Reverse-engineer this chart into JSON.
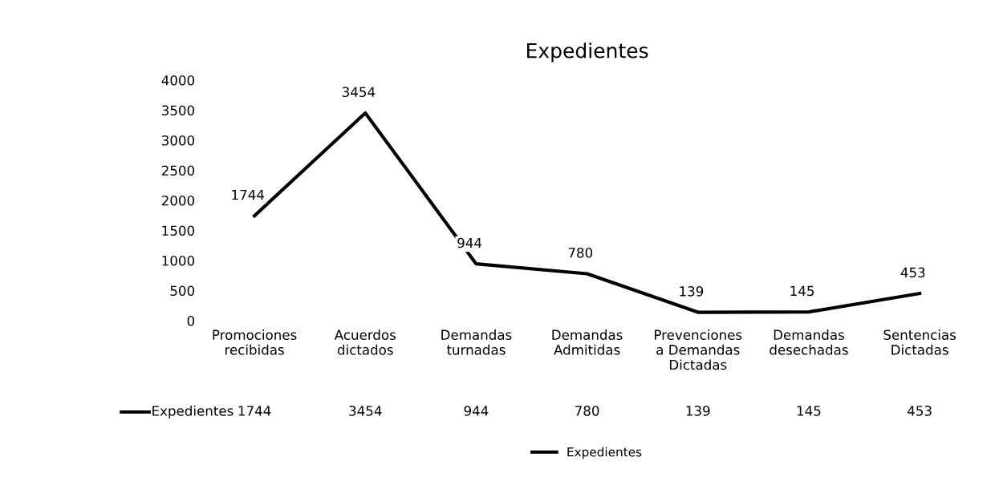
{
  "chart_data": {
    "type": "line",
    "title": "Expedientes",
    "categories": [
      "Promociones\nrecibidas",
      "Acuerdos\ndictados",
      "Demandas\nturnadas",
      "Demandas\nAdmitidas",
      "Prevenciones\na Demandas\nDictadas",
      "Demandas\ndesechadas",
      "Sentencias\nDictadas"
    ],
    "series": [
      {
        "name": "Expedientes",
        "color": "#000000",
        "values": [
          1744,
          3454,
          944,
          780,
          139,
          145,
          453
        ]
      }
    ],
    "annotations": [
      "1744",
      "3454",
      "944",
      "780",
      "139",
      "145",
      "453"
    ],
    "ylim": [
      0,
      4000
    ],
    "yticks": [
      0,
      500,
      1000,
      1500,
      2000,
      2500,
      3000,
      3500,
      4000
    ],
    "data_labels": true,
    "legend": "bottom",
    "grid": false,
    "marker": "none",
    "line_style": "solid"
  }
}
